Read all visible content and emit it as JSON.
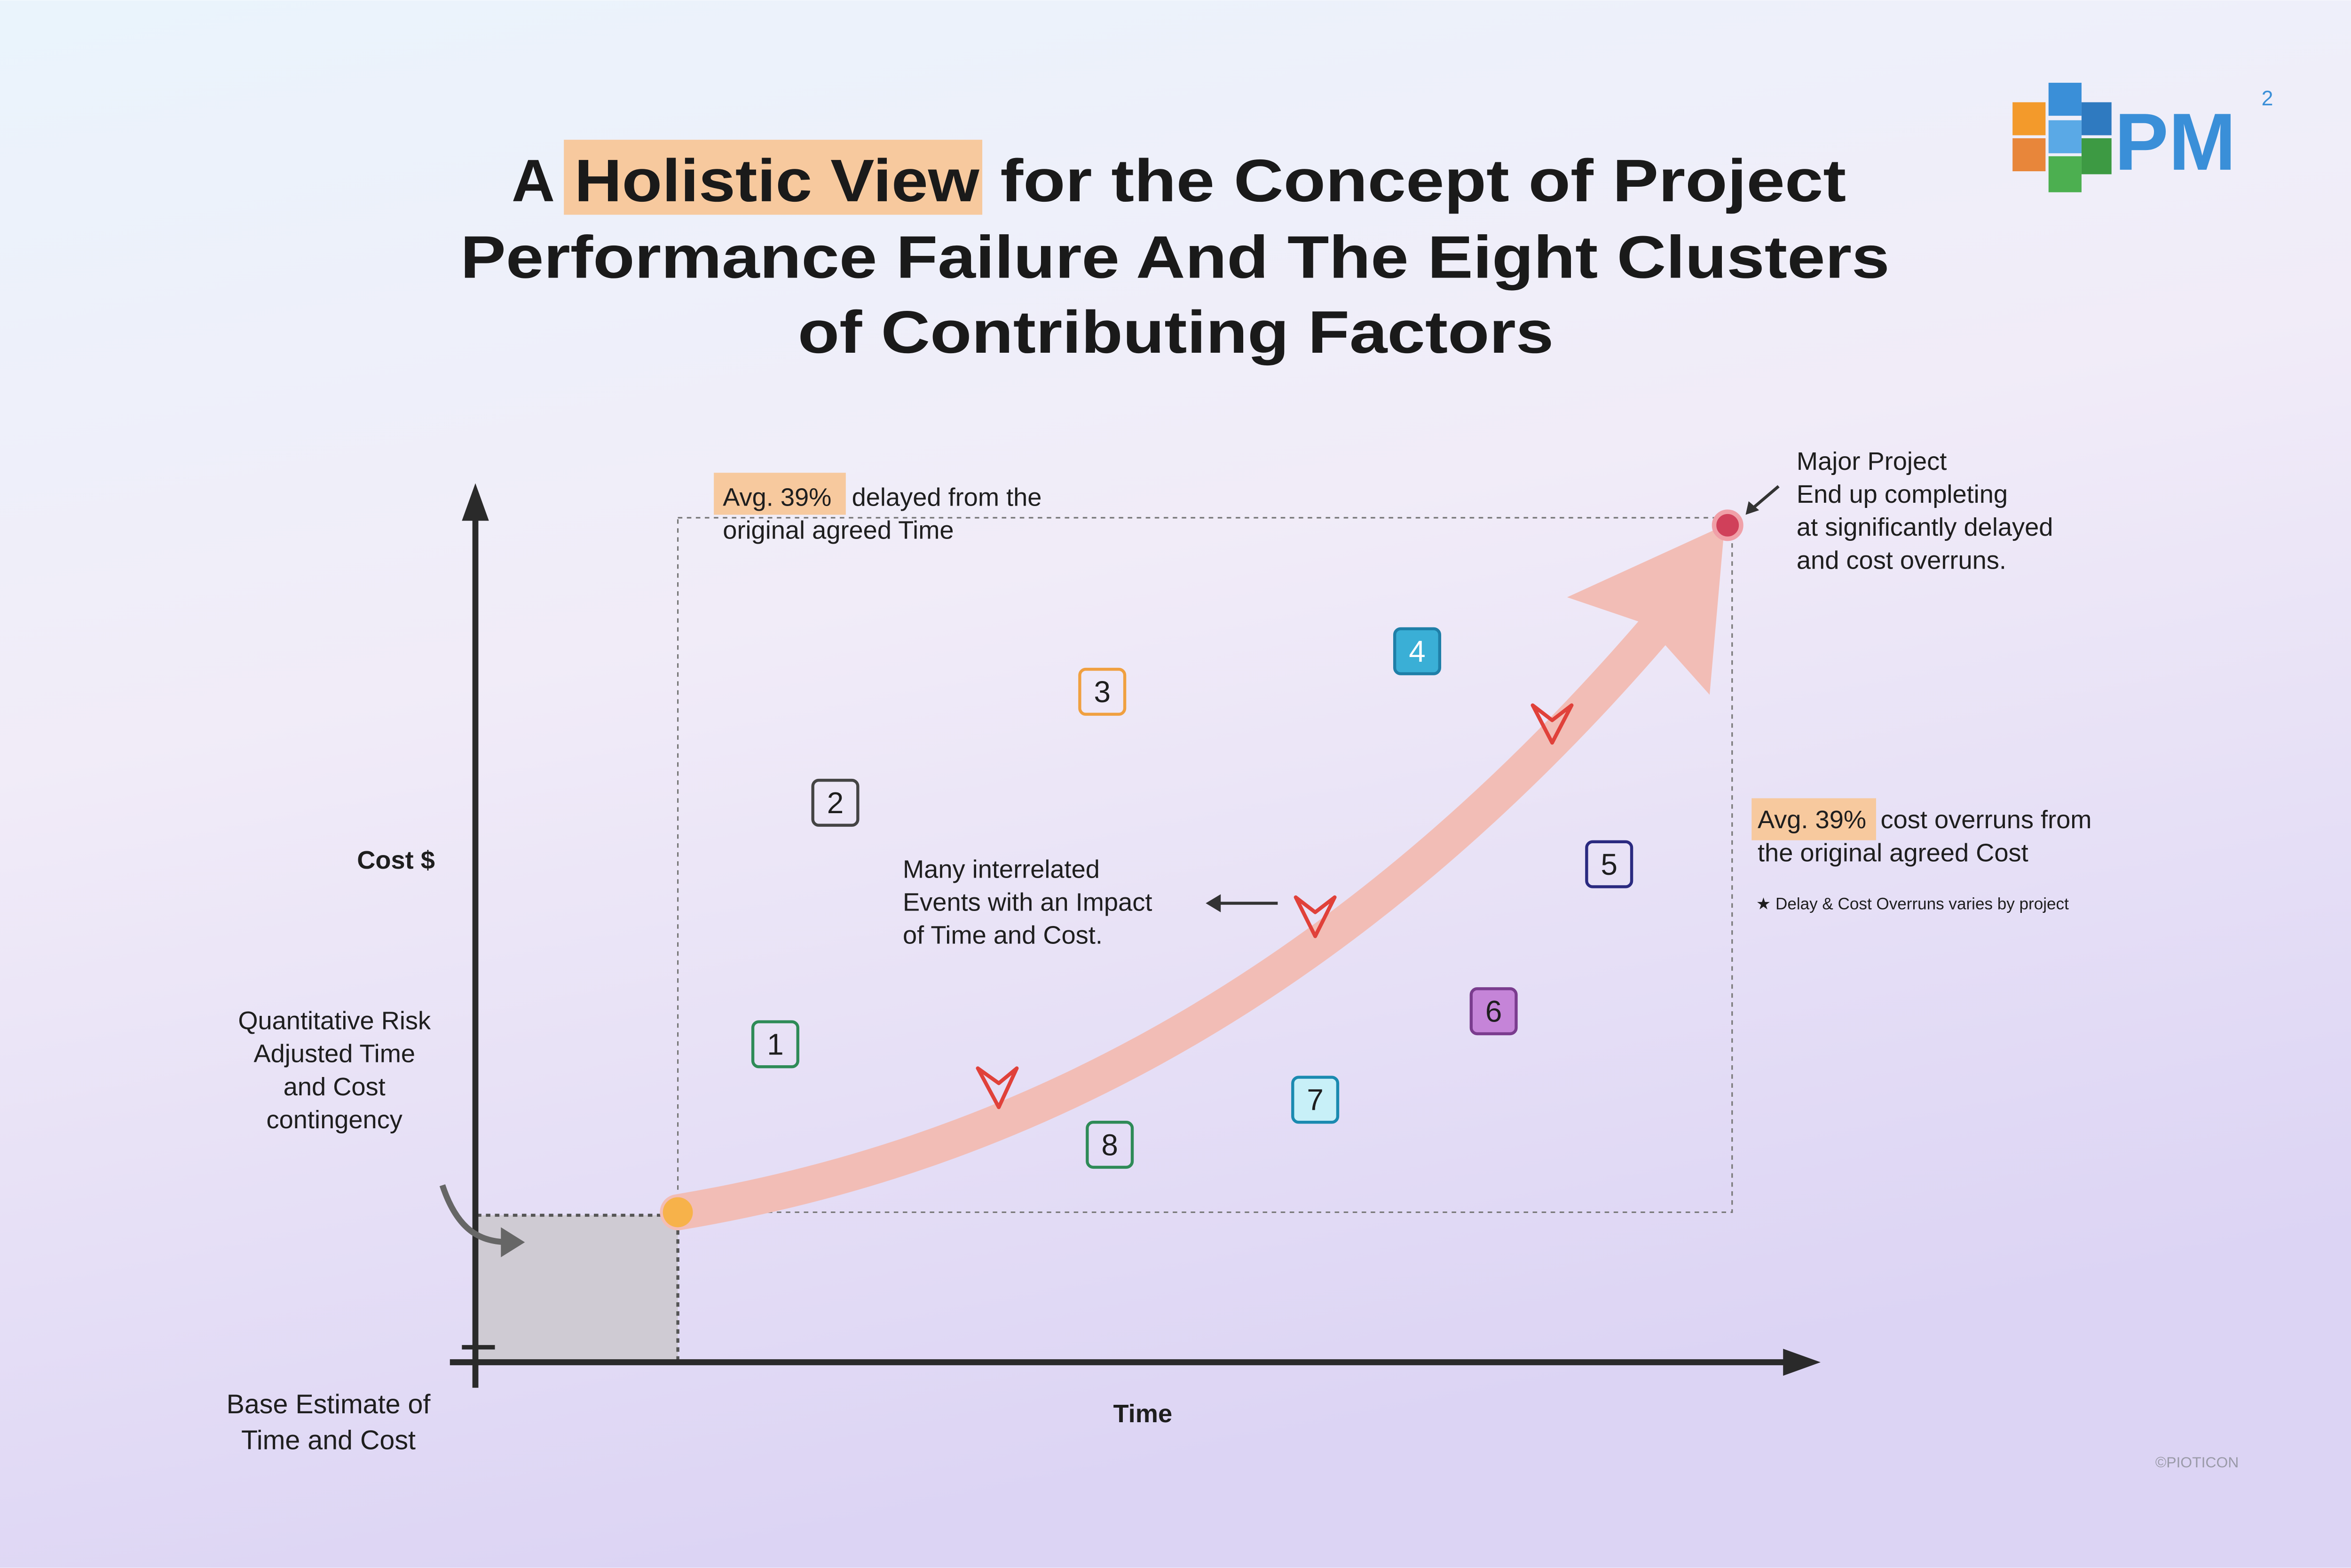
{
  "title": {
    "lead": "A",
    "highlight": "Holistic View",
    "rest": "for the Concept of Project",
    "line2": "Performance Failure And The Eight Clusters",
    "line3": "of Contributing Factors"
  },
  "logo": {
    "text": "PM",
    "superscript": "2"
  },
  "axes": {
    "y_label": "Cost $",
    "x_label": "Time"
  },
  "time_note": {
    "highlight": "Avg. 39%",
    "lines": [
      "delayed from the",
      "original agreed Time"
    ]
  },
  "outcome_note": {
    "lines": [
      "Major Project",
      "End up completing",
      "at significantly delayed",
      "and cost overruns."
    ]
  },
  "cost_note": {
    "highlight": "Avg. 39%",
    "lines": [
      "cost overruns from",
      "the original agreed Cost"
    ],
    "footnote": "★ Delay & Cost Overruns varies by project"
  },
  "events_note": {
    "lines": [
      "Many interrelated",
      "Events with an Impact",
      "of Time and Cost."
    ]
  },
  "contingency_note": {
    "lines": [
      "Quantitative Risk",
      "Adjusted Time",
      "and Cost",
      "contingency"
    ]
  },
  "base_note": {
    "lines": [
      "Base Estimate of",
      "Time and Cost"
    ]
  },
  "clusters": [
    "1",
    "2",
    "3",
    "4",
    "5",
    "6",
    "7",
    "8"
  ],
  "credit": "©PIOTICON"
}
